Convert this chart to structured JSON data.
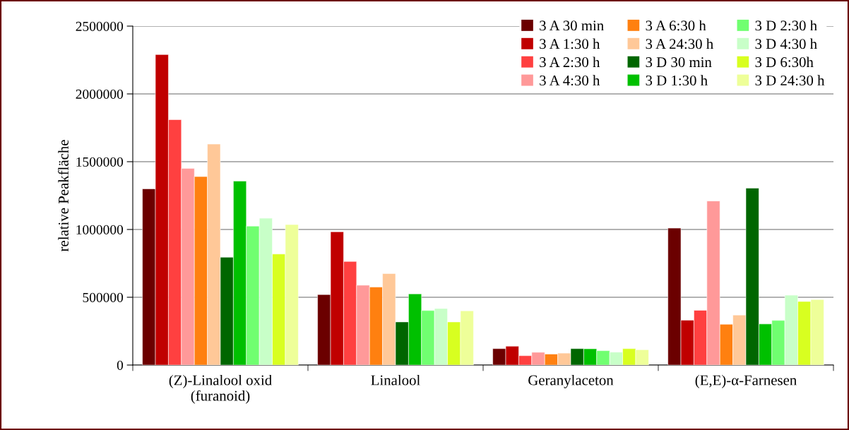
{
  "chart_data": {
    "type": "bar",
    "ylabel": "relative Peakfläche",
    "categories": [
      "(Z)-Linalool oxid\n(furanoid)",
      "Linalool",
      "Geranylaceton",
      "(E,E)-α-Farnesen"
    ],
    "ylim": [
      0,
      2500000
    ],
    "yticks": [
      0,
      500000,
      1000000,
      1500000,
      2000000,
      2500000
    ],
    "grid": "y",
    "legend": "top right",
    "series": [
      {
        "name": "3 A 30 min",
        "color": "#6b0000",
        "values": [
          1300000,
          520000,
          121000,
          1010000
        ]
      },
      {
        "name": "3 A 1:30 h",
        "color": "#c00000",
        "values": [
          2290000,
          983000,
          139000,
          331000
        ]
      },
      {
        "name": "3 A 2:30 h",
        "color": "#ff4040",
        "values": [
          1810000,
          764000,
          69000,
          404000
        ]
      },
      {
        "name": "3 A 4:30 h",
        "color": "#ff9999",
        "values": [
          1450000,
          589000,
          94000,
          1210000
        ]
      },
      {
        "name": "3 A 6:30 h",
        "color": "#ff8010",
        "values": [
          1390000,
          575000,
          81000,
          301000
        ]
      },
      {
        "name": "3 A 24:30 h",
        "color": "#ffc898",
        "values": [
          1630000,
          675000,
          88000,
          369000
        ]
      },
      {
        "name": "3 D 30 min",
        "color": "#006600",
        "values": [
          795000,
          318000,
          121000,
          1305000
        ]
      },
      {
        "name": "3 D 1:30 h",
        "color": "#00c000",
        "values": [
          1357000,
          525000,
          120000,
          303000
        ]
      },
      {
        "name": "3 D 2:30 h",
        "color": "#70ff70",
        "values": [
          1025000,
          402000,
          106000,
          329000
        ]
      },
      {
        "name": "3 D 4:30 h",
        "color": "#c8ffc8",
        "values": [
          1083000,
          417000,
          95000,
          515000
        ]
      },
      {
        "name": "3 D 6:30h",
        "color": "#d8ff20",
        "values": [
          819000,
          318000,
          121000,
          469000
        ]
      },
      {
        "name": "3 D 24:30 h",
        "color": "#eeff99",
        "values": [
          1036000,
          400000,
          113000,
          483000
        ]
      }
    ]
  }
}
